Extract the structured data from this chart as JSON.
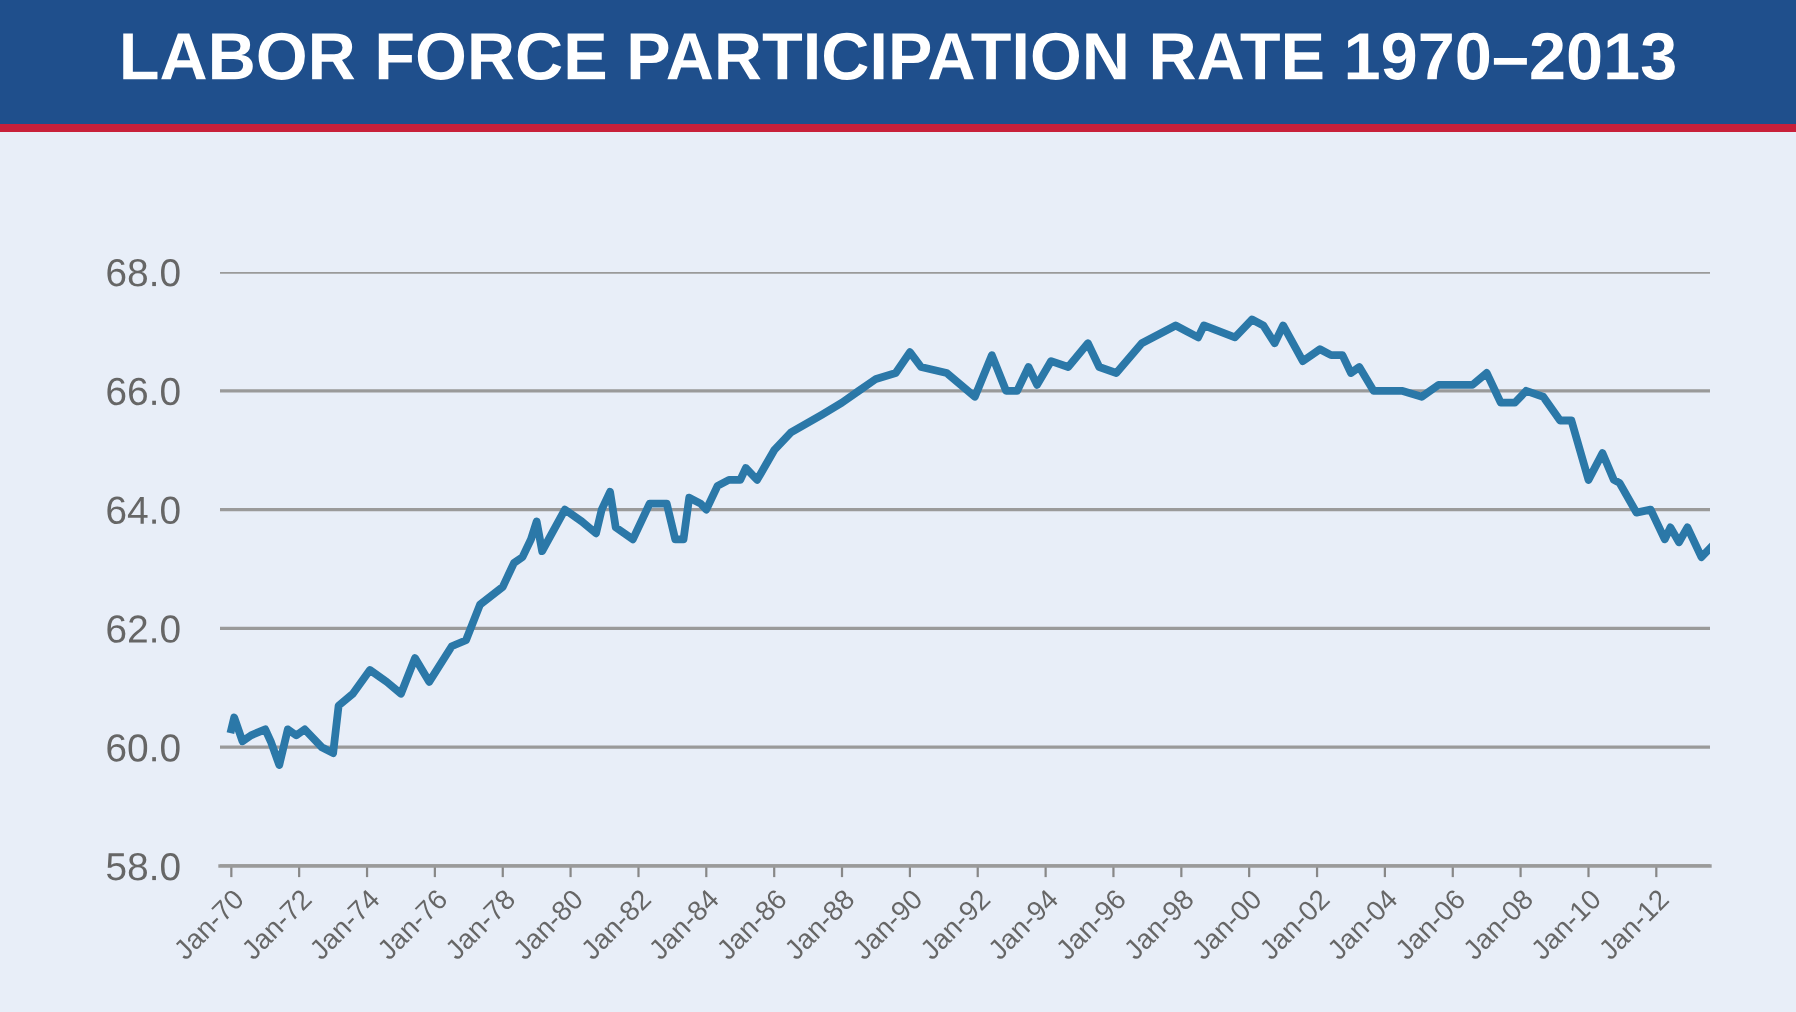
{
  "chart_data": {
    "type": "line",
    "title": "LABOR FORCE PARTICIPATION RATE 1970–2013",
    "series": [
      {
        "color": "#2b78a8",
        "x": [
          "1970-01",
          "1970-02",
          "1970-05",
          "1970-08",
          "1971-01",
          "1971-03",
          "1971-06",
          "1971-09",
          "1971-12",
          "1972-03",
          "1972-09",
          "1973-01",
          "1973-03",
          "1973-08",
          "1974-02",
          "1974-08",
          "1975-01",
          "1975-06",
          "1975-11",
          "1976-07",
          "1976-12",
          "1977-05",
          "1978-01",
          "1978-05",
          "1978-08",
          "1978-11",
          "1979-01",
          "1979-03",
          "1979-11",
          "1980-05",
          "1980-10",
          "1980-12",
          "1981-03",
          "1981-05",
          "1981-11",
          "1982-05",
          "1982-11",
          "1983-02",
          "1983-05",
          "1983-07",
          "1983-11",
          "1984-01",
          "1984-05",
          "1984-09",
          "1985-01",
          "1985-03",
          "1985-07",
          "1986-01",
          "1986-07",
          "1987-06",
          "1988-01",
          "1988-07",
          "1989-01",
          "1989-08",
          "1990-01",
          "1990-05",
          "1991-02",
          "1991-12",
          "1992-06",
          "1992-11",
          "1993-03",
          "1993-07",
          "1993-10",
          "1994-03",
          "1994-09",
          "1995-04",
          "1995-08",
          "1996-02",
          "1996-11",
          "1997-11",
          "1998-07",
          "1998-09",
          "1999-08",
          "2000-02",
          "2000-06",
          "2000-10",
          "2001-01",
          "2001-08",
          "2002-02",
          "2002-06",
          "2002-10",
          "2003-01",
          "2003-04",
          "2003-09",
          "2004-07",
          "2005-02",
          "2005-08",
          "2006-08",
          "2007-01",
          "2007-06",
          "2007-11",
          "2008-03",
          "2008-09",
          "2009-03",
          "2009-07",
          "2010-01",
          "2010-06",
          "2010-10",
          "2010-12",
          "2011-06",
          "2011-11",
          "2012-04",
          "2012-06",
          "2012-09",
          "2012-12",
          "2013-05",
          "2013-08"
        ],
        "values": [
          60.3,
          60.5,
          60.1,
          60.2,
          60.3,
          60.1,
          59.7,
          60.3,
          60.2,
          60.3,
          60.0,
          59.9,
          60.7,
          60.9,
          61.3,
          61.1,
          60.9,
          61.5,
          61.1,
          61.7,
          61.8,
          62.4,
          62.7,
          63.1,
          63.2,
          63.5,
          63.8,
          63.3,
          64.0,
          63.8,
          63.6,
          64.0,
          64.3,
          63.7,
          63.5,
          64.1,
          64.1,
          63.5,
          63.5,
          64.2,
          64.1,
          64.0,
          64.4,
          64.5,
          64.5,
          64.7,
          64.5,
          65.0,
          65.3,
          65.6,
          65.8,
          66.0,
          66.2,
          66.3,
          66.65,
          66.4,
          66.3,
          65.9,
          66.6,
          66.0,
          66.0,
          66.4,
          66.1,
          66.5,
          66.4,
          66.8,
          66.4,
          66.3,
          66.8,
          67.1,
          66.9,
          67.1,
          66.9,
          67.2,
          67.1,
          66.8,
          67.1,
          66.5,
          66.7,
          66.6,
          66.6,
          66.3,
          66.4,
          66.0,
          66.0,
          65.9,
          66.1,
          66.1,
          66.3,
          65.8,
          65.8,
          66.0,
          65.9,
          65.5,
          65.5,
          64.5,
          64.95,
          64.5,
          64.45,
          63.95,
          64.0,
          63.5,
          63.7,
          63.45,
          63.7,
          63.2,
          63.35
        ]
      }
    ],
    "xlim": [
      "1969-09",
      "2013-08"
    ],
    "xticks": [
      {
        "value": "1970-01",
        "label": "Jan-70"
      },
      {
        "value": "1972-01",
        "label": "Jan-72"
      },
      {
        "value": "1974-01",
        "label": "Jan-74"
      },
      {
        "value": "1976-01",
        "label": "Jan-76"
      },
      {
        "value": "1978-01",
        "label": "Jan-78"
      },
      {
        "value": "1980-01",
        "label": "Jan-80"
      },
      {
        "value": "1982-01",
        "label": "Jan-82"
      },
      {
        "value": "1984-01",
        "label": "Jan-84"
      },
      {
        "value": "1986-01",
        "label": "Jan-86"
      },
      {
        "value": "1988-01",
        "label": "Jan-88"
      },
      {
        "value": "1990-01",
        "label": "Jan-90"
      },
      {
        "value": "1992-01",
        "label": "Jan-92"
      },
      {
        "value": "1994-01",
        "label": "Jan-94"
      },
      {
        "value": "1996-01",
        "label": "Jan-96"
      },
      {
        "value": "1998-01",
        "label": "Jan-98"
      },
      {
        "value": "2000-01",
        "label": "Jan-00"
      },
      {
        "value": "2002-01",
        "label": "Jan-02"
      },
      {
        "value": "2004-01",
        "label": "Jan-04"
      },
      {
        "value": "2006-01",
        "label": "Jan-06"
      },
      {
        "value": "2008-01",
        "label": "Jan-08"
      },
      {
        "value": "2010-01",
        "label": "Jan-10"
      },
      {
        "value": "2012-01",
        "label": "Jan-12"
      }
    ],
    "ylim": [
      58,
      68
    ],
    "yticks": [
      {
        "value": 58,
        "label": "58.0"
      },
      {
        "value": 60,
        "label": "60.0"
      },
      {
        "value": 62,
        "label": "62.0"
      },
      {
        "value": 64,
        "label": "64.0"
      },
      {
        "value": 66,
        "label": "66.0"
      },
      {
        "value": 68,
        "label": "68.0"
      }
    ],
    "grid": "y",
    "line_style": "solid",
    "marker": "none"
  }
}
